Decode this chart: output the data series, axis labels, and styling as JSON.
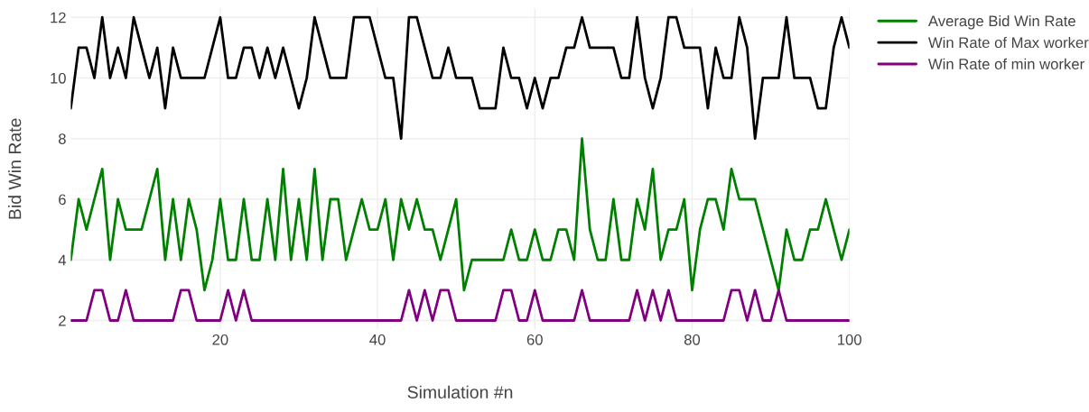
{
  "chart_data": {
    "type": "line",
    "xlabel": "Simulation #n",
    "ylabel": "Bid Win Rate",
    "x": [
      1,
      2,
      3,
      4,
      5,
      6,
      7,
      8,
      9,
      10,
      11,
      12,
      13,
      14,
      15,
      16,
      17,
      18,
      19,
      20,
      21,
      22,
      23,
      24,
      25,
      26,
      27,
      28,
      29,
      30,
      31,
      32,
      33,
      34,
      35,
      36,
      37,
      38,
      39,
      40,
      41,
      42,
      43,
      44,
      45,
      46,
      47,
      48,
      49,
      50,
      51,
      52,
      53,
      54,
      55,
      56,
      57,
      58,
      59,
      60,
      61,
      62,
      63,
      64,
      65,
      66,
      67,
      68,
      69,
      70,
      71,
      72,
      73,
      74,
      75,
      76,
      77,
      78,
      79,
      80,
      81,
      82,
      83,
      84,
      85,
      86,
      87,
      88,
      89,
      90,
      91,
      92,
      93,
      94,
      95,
      96,
      97,
      98,
      99,
      100
    ],
    "series": [
      {
        "name": "Average Bid Win Rate",
        "color": "#008000",
        "values": [
          4,
          6,
          5,
          6,
          7,
          4,
          6,
          5,
          5,
          5,
          6,
          7,
          4,
          6,
          4,
          6,
          5,
          3,
          4,
          6,
          4,
          4,
          6,
          4,
          4,
          6,
          4,
          7,
          4,
          6,
          4,
          7,
          4,
          6,
          6,
          4,
          5,
          6,
          5,
          5,
          6,
          4,
          6,
          5,
          6,
          5,
          5,
          4,
          5,
          6,
          3,
          4,
          4,
          4,
          4,
          4,
          5,
          4,
          4,
          5,
          4,
          4,
          5,
          5,
          4,
          8,
          5,
          4,
          4,
          6,
          4,
          4,
          6,
          5,
          7,
          4,
          5,
          5,
          6,
          3,
          5,
          6,
          6,
          5,
          7,
          6,
          6,
          6,
          5,
          4,
          3,
          5,
          4,
          4,
          5,
          5,
          6,
          5,
          4,
          5
        ]
      },
      {
        "name": "Win Rate of Max worker",
        "color": "#000000",
        "values": [
          9,
          11,
          11,
          10,
          12,
          10,
          11,
          10,
          12,
          11,
          10,
          11,
          9,
          11,
          10,
          10,
          10,
          10,
          11,
          12,
          10,
          10,
          11,
          11,
          10,
          11,
          10,
          11,
          10,
          9,
          10,
          12,
          11,
          10,
          10,
          10,
          12,
          12,
          12,
          11,
          10,
          10,
          8,
          12,
          12,
          11,
          10,
          10,
          11,
          10,
          10,
          10,
          9,
          9,
          9,
          11,
          10,
          10,
          9,
          10,
          9,
          10,
          10,
          11,
          11,
          12,
          11,
          11,
          11,
          11,
          10,
          10,
          12,
          10,
          9,
          10,
          12,
          12,
          11,
          11,
          11,
          9,
          11,
          10,
          10,
          12,
          11,
          8,
          10,
          10,
          10,
          12,
          10,
          10,
          10,
          9,
          9,
          11,
          12,
          11
        ]
      },
      {
        "name": "Win Rate of min worker",
        "color": "#800080",
        "values": [
          2,
          2,
          2,
          3,
          3,
          2,
          2,
          3,
          2,
          2,
          2,
          2,
          2,
          2,
          3,
          3,
          2,
          2,
          2,
          2,
          3,
          2,
          3,
          2,
          2,
          2,
          2,
          2,
          2,
          2,
          2,
          2,
          2,
          2,
          2,
          2,
          2,
          2,
          2,
          2,
          2,
          2,
          2,
          3,
          2,
          3,
          2,
          3,
          3,
          2,
          2,
          2,
          2,
          2,
          2,
          3,
          3,
          2,
          2,
          3,
          2,
          2,
          2,
          2,
          2,
          3,
          2,
          2,
          2,
          2,
          2,
          2,
          3,
          2,
          3,
          2,
          3,
          2,
          2,
          2,
          2,
          2,
          2,
          2,
          3,
          3,
          2,
          3,
          2,
          2,
          3,
          2,
          2,
          2,
          2,
          2,
          2,
          2,
          2,
          2
        ]
      }
    ],
    "xlim": [
      1,
      100
    ],
    "xticks": [
      20,
      40,
      60,
      80,
      100
    ],
    "ylim": [
      1.7,
      12.3
    ],
    "yticks": [
      2,
      4,
      6,
      8,
      10,
      12
    ],
    "grid": true,
    "legend": "top right",
    "marker": "none",
    "line_style": "solid"
  }
}
